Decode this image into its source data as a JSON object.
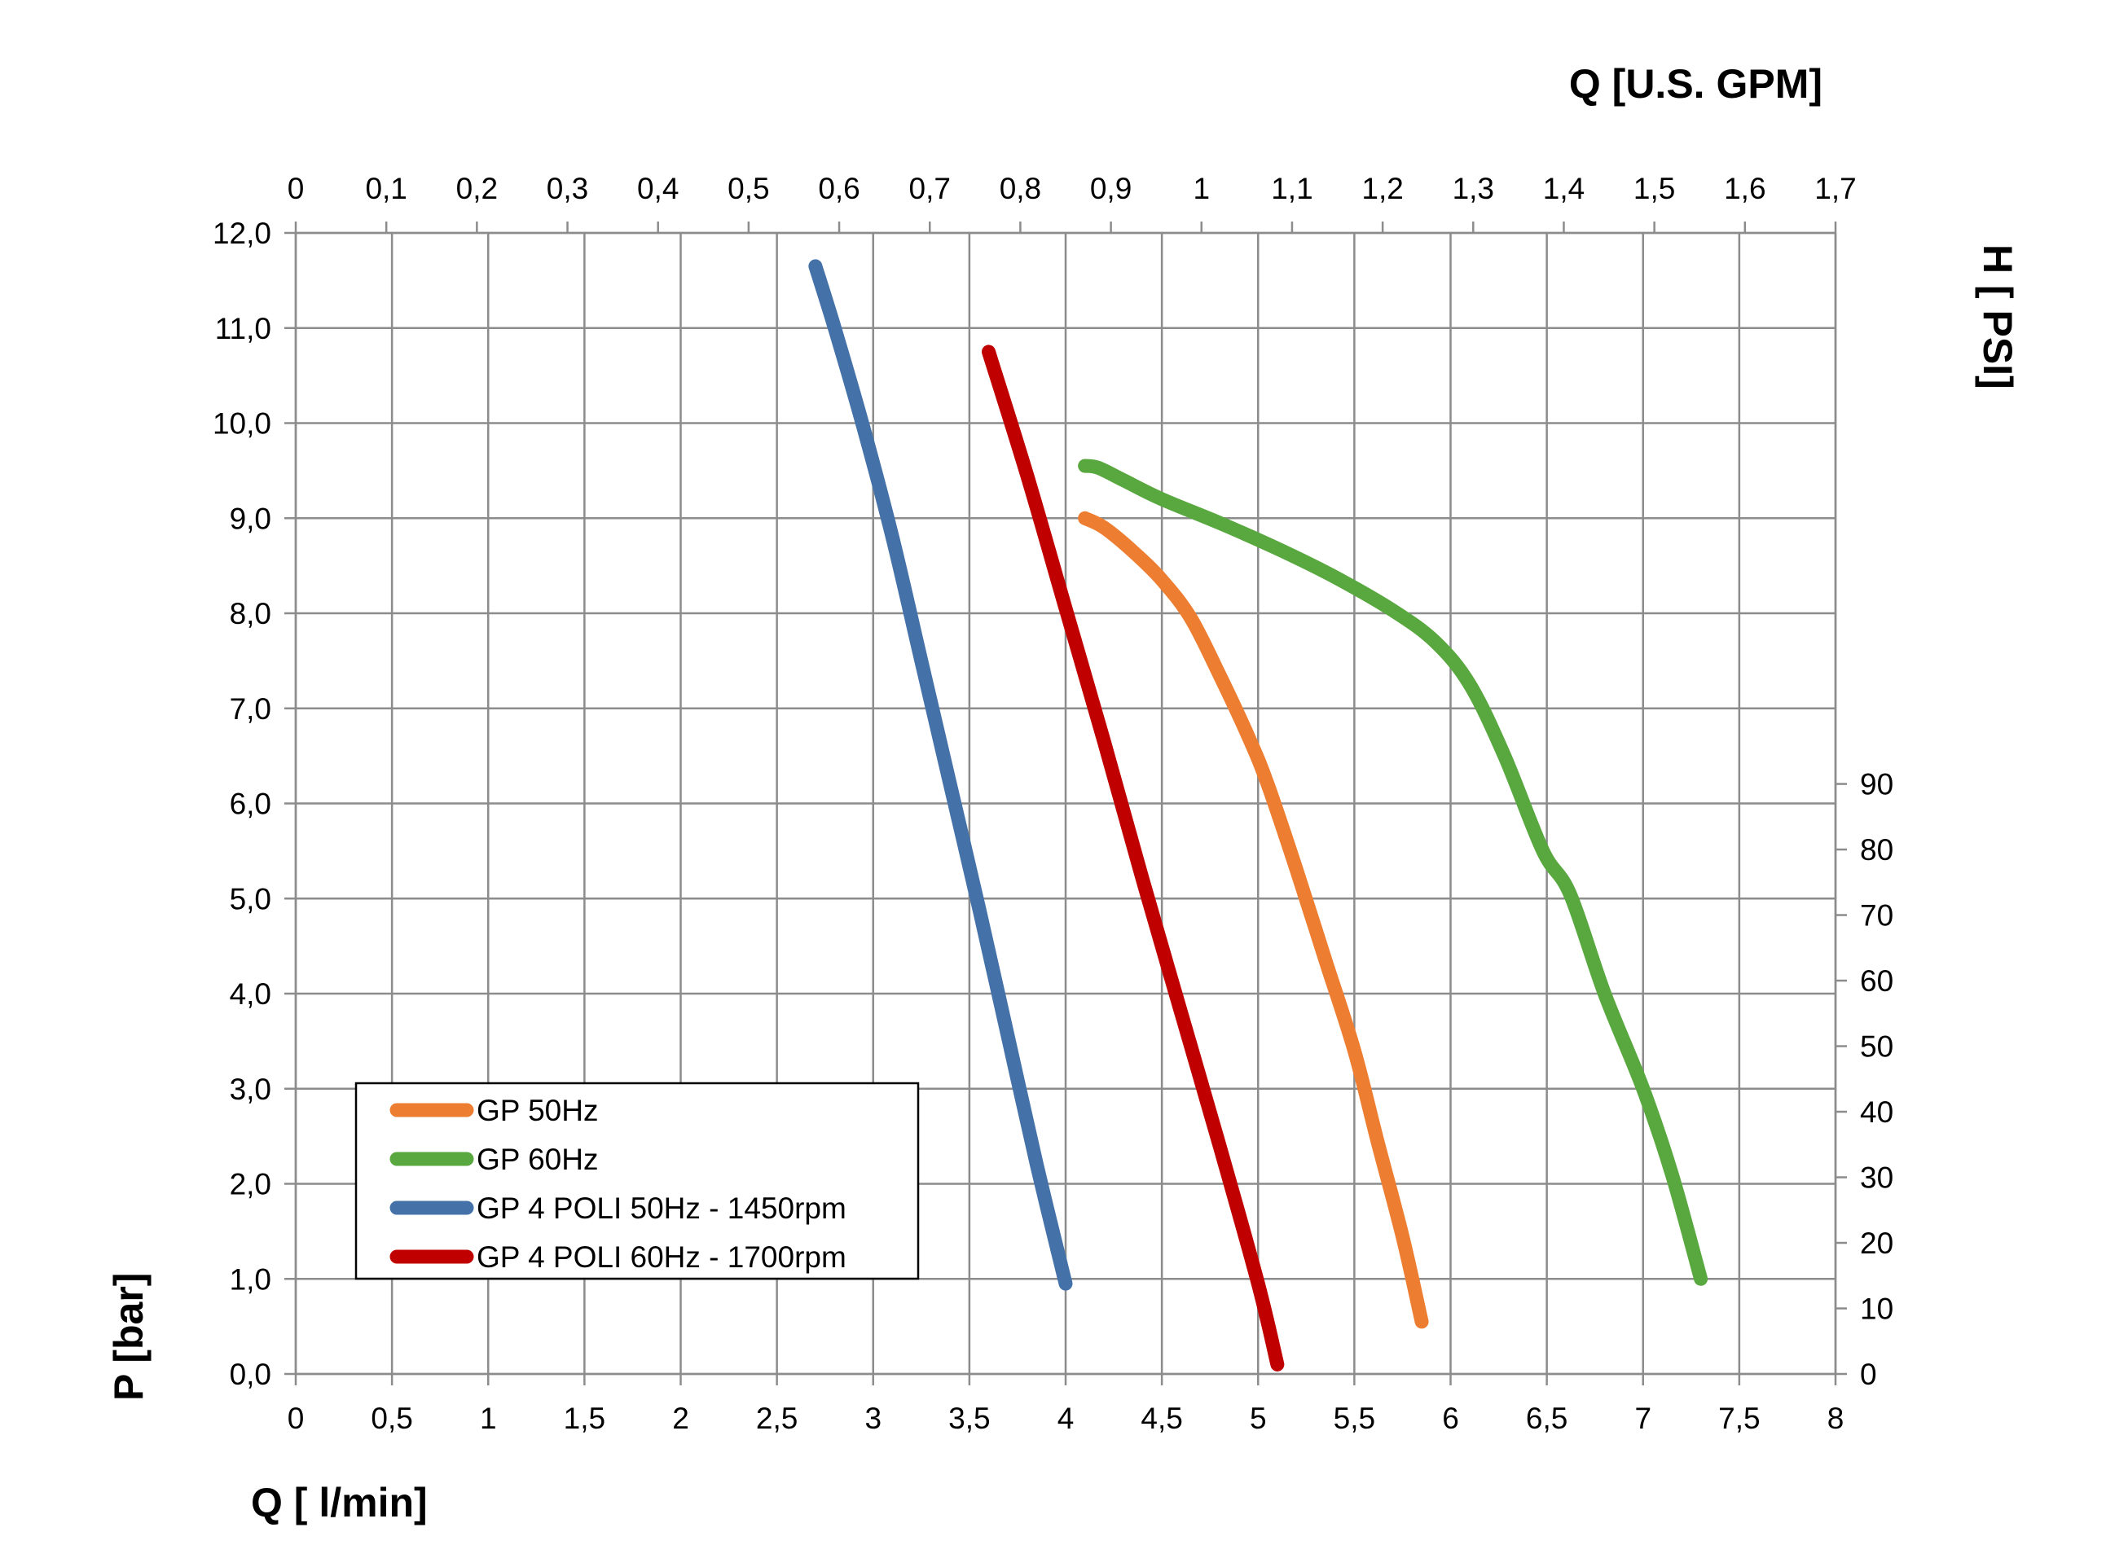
{
  "chart_data": {
    "type": "line",
    "x_bottom": {
      "label": "Q [ l/min]",
      "range": [
        0,
        8
      ],
      "ticks": [
        "0",
        "0,5",
        "1",
        "1,5",
        "2",
        "2,5",
        "3",
        "3,5",
        "4",
        "4,5",
        "5",
        "5,5",
        "6",
        "6,5",
        "7",
        "7,5",
        "8"
      ]
    },
    "x_top": {
      "label": "Q  [U.S. GPM]",
      "range": [
        0,
        1.7
      ],
      "ticks": [
        "0",
        "0,1",
        "0,2",
        "0,3",
        "0,4",
        "0,5",
        "0,6",
        "0,7",
        "0,8",
        "0,9",
        "1",
        "1,1",
        "1,2",
        "1,3",
        "1,4",
        "1,5",
        "1,6",
        "1,7"
      ]
    },
    "y_left": {
      "label": "P [bar]",
      "range": [
        0,
        12
      ],
      "ticks": [
        "0,0",
        "1,0",
        "2,0",
        "3,0",
        "4,0",
        "5,0",
        "6,0",
        "7,0",
        "8,0",
        "9,0",
        "10,0",
        "11,0",
        "12,0"
      ]
    },
    "y_right": {
      "label": "H [ PSI]",
      "range": [
        0,
        174.05
      ],
      "ticks": [
        "0",
        "10",
        "20",
        "30",
        "40",
        "50",
        "60",
        "70",
        "80",
        "90"
      ]
    },
    "grid": true,
    "legend_position": "bottom-left",
    "series": [
      {
        "name": "GP 50Hz",
        "color": "#ed7d31",
        "x": [
          4.1,
          4.2,
          4.35,
          4.5,
          4.65,
          4.8,
          4.95,
          5.05,
          5.2,
          5.35,
          5.5,
          5.62,
          5.75,
          5.85
        ],
        "y": [
          9.0,
          8.9,
          8.65,
          8.35,
          7.95,
          7.35,
          6.7,
          6.2,
          5.3,
          4.35,
          3.4,
          2.45,
          1.45,
          0.55
        ]
      },
      {
        "name": "GP 60Hz",
        "color": "#59a83f",
        "x": [
          4.1,
          4.17,
          4.3,
          4.5,
          4.8,
          5.1,
          5.4,
          5.7,
          5.92,
          6.1,
          6.28,
          6.48,
          6.62,
          6.8,
          7.0,
          7.15,
          7.3
        ],
        "y": [
          9.55,
          9.53,
          9.4,
          9.2,
          8.95,
          8.68,
          8.38,
          8.03,
          7.7,
          7.25,
          6.5,
          5.5,
          5.05,
          4.0,
          3.0,
          2.1,
          1.0
        ]
      },
      {
        "name": "GP 4 POLI 50Hz - 1450rpm",
        "color": "#4472a8",
        "x": [
          2.7,
          2.8,
          2.95,
          3.1,
          3.25,
          3.4,
          3.55,
          3.7,
          3.85,
          4.0
        ],
        "y": [
          11.65,
          11.0,
          9.95,
          8.8,
          7.5,
          6.2,
          4.9,
          3.55,
          2.2,
          0.95
        ]
      },
      {
        "name": "GP 4 POLI 60Hz - 1700rpm",
        "color": "#c00000",
        "x": [
          3.6,
          3.8,
          4.0,
          4.2,
          4.4,
          4.6,
          4.8,
          5.0,
          5.1
        ],
        "y": [
          10.75,
          9.45,
          8.05,
          6.65,
          5.2,
          3.8,
          2.4,
          0.95,
          0.1
        ]
      }
    ]
  }
}
